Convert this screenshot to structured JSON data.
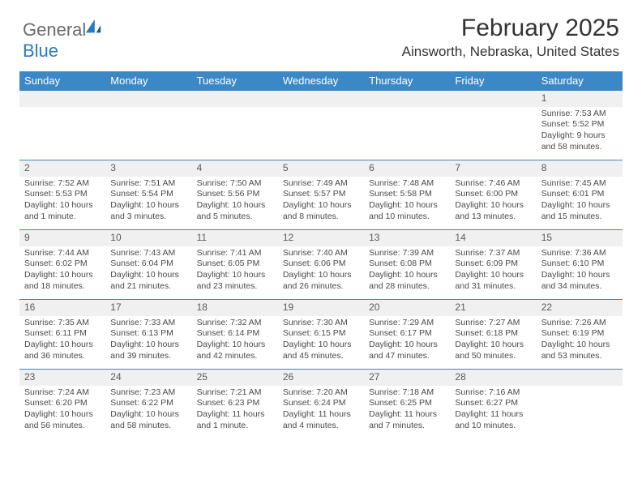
{
  "logo": {
    "text1": "General",
    "text2": "Blue"
  },
  "title": "February 2025",
  "location": "Ainsworth, Nebraska, United States",
  "colors": {
    "header_bg": "#3b88c7",
    "header_text": "#ffffff",
    "daynum_bg": "#f0f0f0",
    "border": "#3b88c7",
    "logo_gray": "#6b6b6b",
    "logo_blue": "#2a7ac0",
    "text": "#333333"
  },
  "weekdays": [
    "Sunday",
    "Monday",
    "Tuesday",
    "Wednesday",
    "Thursday",
    "Friday",
    "Saturday"
  ],
  "weeks": [
    [
      null,
      null,
      null,
      null,
      null,
      null,
      {
        "d": "1",
        "sr": "Sunrise: 7:53 AM",
        "ss": "Sunset: 5:52 PM",
        "dl1": "Daylight: 9 hours",
        "dl2": "and 58 minutes."
      }
    ],
    [
      {
        "d": "2",
        "sr": "Sunrise: 7:52 AM",
        "ss": "Sunset: 5:53 PM",
        "dl1": "Daylight: 10 hours",
        "dl2": "and 1 minute."
      },
      {
        "d": "3",
        "sr": "Sunrise: 7:51 AM",
        "ss": "Sunset: 5:54 PM",
        "dl1": "Daylight: 10 hours",
        "dl2": "and 3 minutes."
      },
      {
        "d": "4",
        "sr": "Sunrise: 7:50 AM",
        "ss": "Sunset: 5:56 PM",
        "dl1": "Daylight: 10 hours",
        "dl2": "and 5 minutes."
      },
      {
        "d": "5",
        "sr": "Sunrise: 7:49 AM",
        "ss": "Sunset: 5:57 PM",
        "dl1": "Daylight: 10 hours",
        "dl2": "and 8 minutes."
      },
      {
        "d": "6",
        "sr": "Sunrise: 7:48 AM",
        "ss": "Sunset: 5:58 PM",
        "dl1": "Daylight: 10 hours",
        "dl2": "and 10 minutes."
      },
      {
        "d": "7",
        "sr": "Sunrise: 7:46 AM",
        "ss": "Sunset: 6:00 PM",
        "dl1": "Daylight: 10 hours",
        "dl2": "and 13 minutes."
      },
      {
        "d": "8",
        "sr": "Sunrise: 7:45 AM",
        "ss": "Sunset: 6:01 PM",
        "dl1": "Daylight: 10 hours",
        "dl2": "and 15 minutes."
      }
    ],
    [
      {
        "d": "9",
        "sr": "Sunrise: 7:44 AM",
        "ss": "Sunset: 6:02 PM",
        "dl1": "Daylight: 10 hours",
        "dl2": "and 18 minutes."
      },
      {
        "d": "10",
        "sr": "Sunrise: 7:43 AM",
        "ss": "Sunset: 6:04 PM",
        "dl1": "Daylight: 10 hours",
        "dl2": "and 21 minutes."
      },
      {
        "d": "11",
        "sr": "Sunrise: 7:41 AM",
        "ss": "Sunset: 6:05 PM",
        "dl1": "Daylight: 10 hours",
        "dl2": "and 23 minutes."
      },
      {
        "d": "12",
        "sr": "Sunrise: 7:40 AM",
        "ss": "Sunset: 6:06 PM",
        "dl1": "Daylight: 10 hours",
        "dl2": "and 26 minutes."
      },
      {
        "d": "13",
        "sr": "Sunrise: 7:39 AM",
        "ss": "Sunset: 6:08 PM",
        "dl1": "Daylight: 10 hours",
        "dl2": "and 28 minutes."
      },
      {
        "d": "14",
        "sr": "Sunrise: 7:37 AM",
        "ss": "Sunset: 6:09 PM",
        "dl1": "Daylight: 10 hours",
        "dl2": "and 31 minutes."
      },
      {
        "d": "15",
        "sr": "Sunrise: 7:36 AM",
        "ss": "Sunset: 6:10 PM",
        "dl1": "Daylight: 10 hours",
        "dl2": "and 34 minutes."
      }
    ],
    [
      {
        "d": "16",
        "sr": "Sunrise: 7:35 AM",
        "ss": "Sunset: 6:11 PM",
        "dl1": "Daylight: 10 hours",
        "dl2": "and 36 minutes."
      },
      {
        "d": "17",
        "sr": "Sunrise: 7:33 AM",
        "ss": "Sunset: 6:13 PM",
        "dl1": "Daylight: 10 hours",
        "dl2": "and 39 minutes."
      },
      {
        "d": "18",
        "sr": "Sunrise: 7:32 AM",
        "ss": "Sunset: 6:14 PM",
        "dl1": "Daylight: 10 hours",
        "dl2": "and 42 minutes."
      },
      {
        "d": "19",
        "sr": "Sunrise: 7:30 AM",
        "ss": "Sunset: 6:15 PM",
        "dl1": "Daylight: 10 hours",
        "dl2": "and 45 minutes."
      },
      {
        "d": "20",
        "sr": "Sunrise: 7:29 AM",
        "ss": "Sunset: 6:17 PM",
        "dl1": "Daylight: 10 hours",
        "dl2": "and 47 minutes."
      },
      {
        "d": "21",
        "sr": "Sunrise: 7:27 AM",
        "ss": "Sunset: 6:18 PM",
        "dl1": "Daylight: 10 hours",
        "dl2": "and 50 minutes."
      },
      {
        "d": "22",
        "sr": "Sunrise: 7:26 AM",
        "ss": "Sunset: 6:19 PM",
        "dl1": "Daylight: 10 hours",
        "dl2": "and 53 minutes."
      }
    ],
    [
      {
        "d": "23",
        "sr": "Sunrise: 7:24 AM",
        "ss": "Sunset: 6:20 PM",
        "dl1": "Daylight: 10 hours",
        "dl2": "and 56 minutes."
      },
      {
        "d": "24",
        "sr": "Sunrise: 7:23 AM",
        "ss": "Sunset: 6:22 PM",
        "dl1": "Daylight: 10 hours",
        "dl2": "and 58 minutes."
      },
      {
        "d": "25",
        "sr": "Sunrise: 7:21 AM",
        "ss": "Sunset: 6:23 PM",
        "dl1": "Daylight: 11 hours",
        "dl2": "and 1 minute."
      },
      {
        "d": "26",
        "sr": "Sunrise: 7:20 AM",
        "ss": "Sunset: 6:24 PM",
        "dl1": "Daylight: 11 hours",
        "dl2": "and 4 minutes."
      },
      {
        "d": "27",
        "sr": "Sunrise: 7:18 AM",
        "ss": "Sunset: 6:25 PM",
        "dl1": "Daylight: 11 hours",
        "dl2": "and 7 minutes."
      },
      {
        "d": "28",
        "sr": "Sunrise: 7:16 AM",
        "ss": "Sunset: 6:27 PM",
        "dl1": "Daylight: 11 hours",
        "dl2": "and 10 minutes."
      },
      null
    ]
  ]
}
